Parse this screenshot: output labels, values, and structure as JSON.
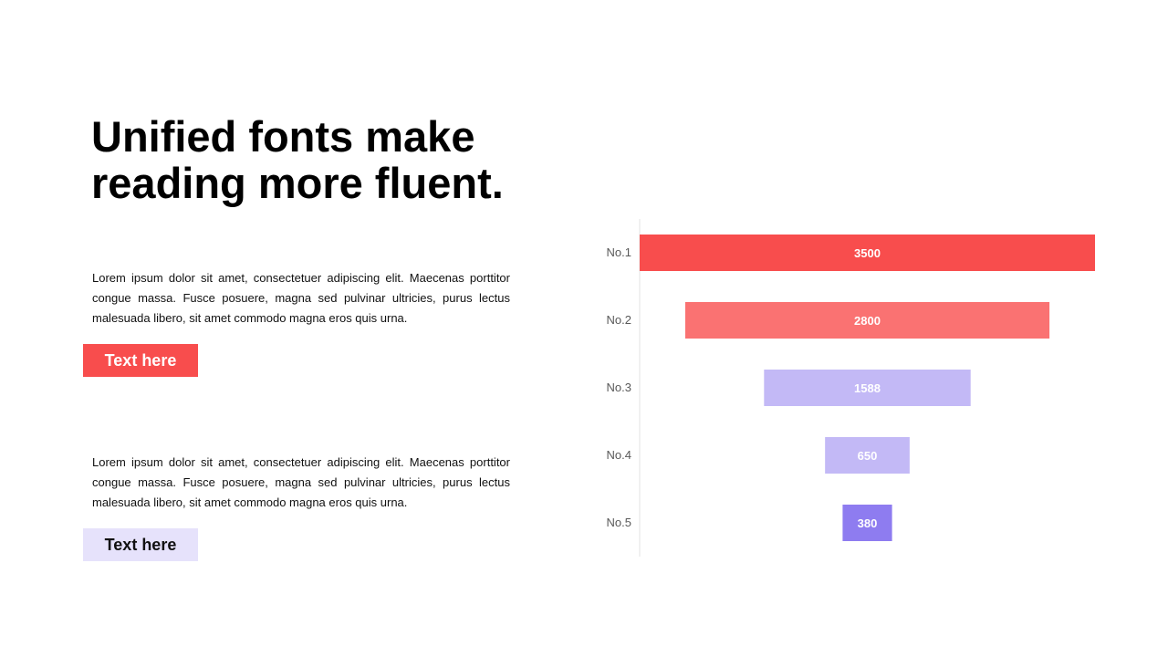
{
  "title": "Unified fonts make reading more fluent.",
  "sections": [
    {
      "body": "Lorem ipsum dolor sit amet, consectetuer adipiscing elit. Maecenas porttitor congue massa. Fusce posuere, magna sed pulvinar ultricies, purus lectus malesuada libero, sit amet commodo magna eros quis urna.",
      "tag_label": "Text here",
      "tag_color": "#f84d4d"
    },
    {
      "body": "Lorem ipsum dolor sit amet, consectetuer adipiscing elit. Maecenas porttitor congue massa. Fusce posuere, magna sed pulvinar ultricies, purus lectus malesuada libero, sit amet commodo magna eros quis urna.",
      "tag_label": "Text here",
      "tag_color": "#e6e2fb"
    }
  ],
  "chart_data": {
    "type": "bar",
    "orientation": "horizontal",
    "style": "funnel",
    "categories": [
      "No.1",
      "No.2",
      "No.3",
      "No.4",
      "No.5"
    ],
    "values": [
      3500,
      2800,
      1588,
      650,
      380
    ],
    "colors": [
      "#f84d4d",
      "#fa7272",
      "#c3b9f6",
      "#c3b9f6",
      "#8e7cf0"
    ],
    "title": "",
    "xlabel": "",
    "ylabel": "",
    "grid": false,
    "data_labels": true
  }
}
